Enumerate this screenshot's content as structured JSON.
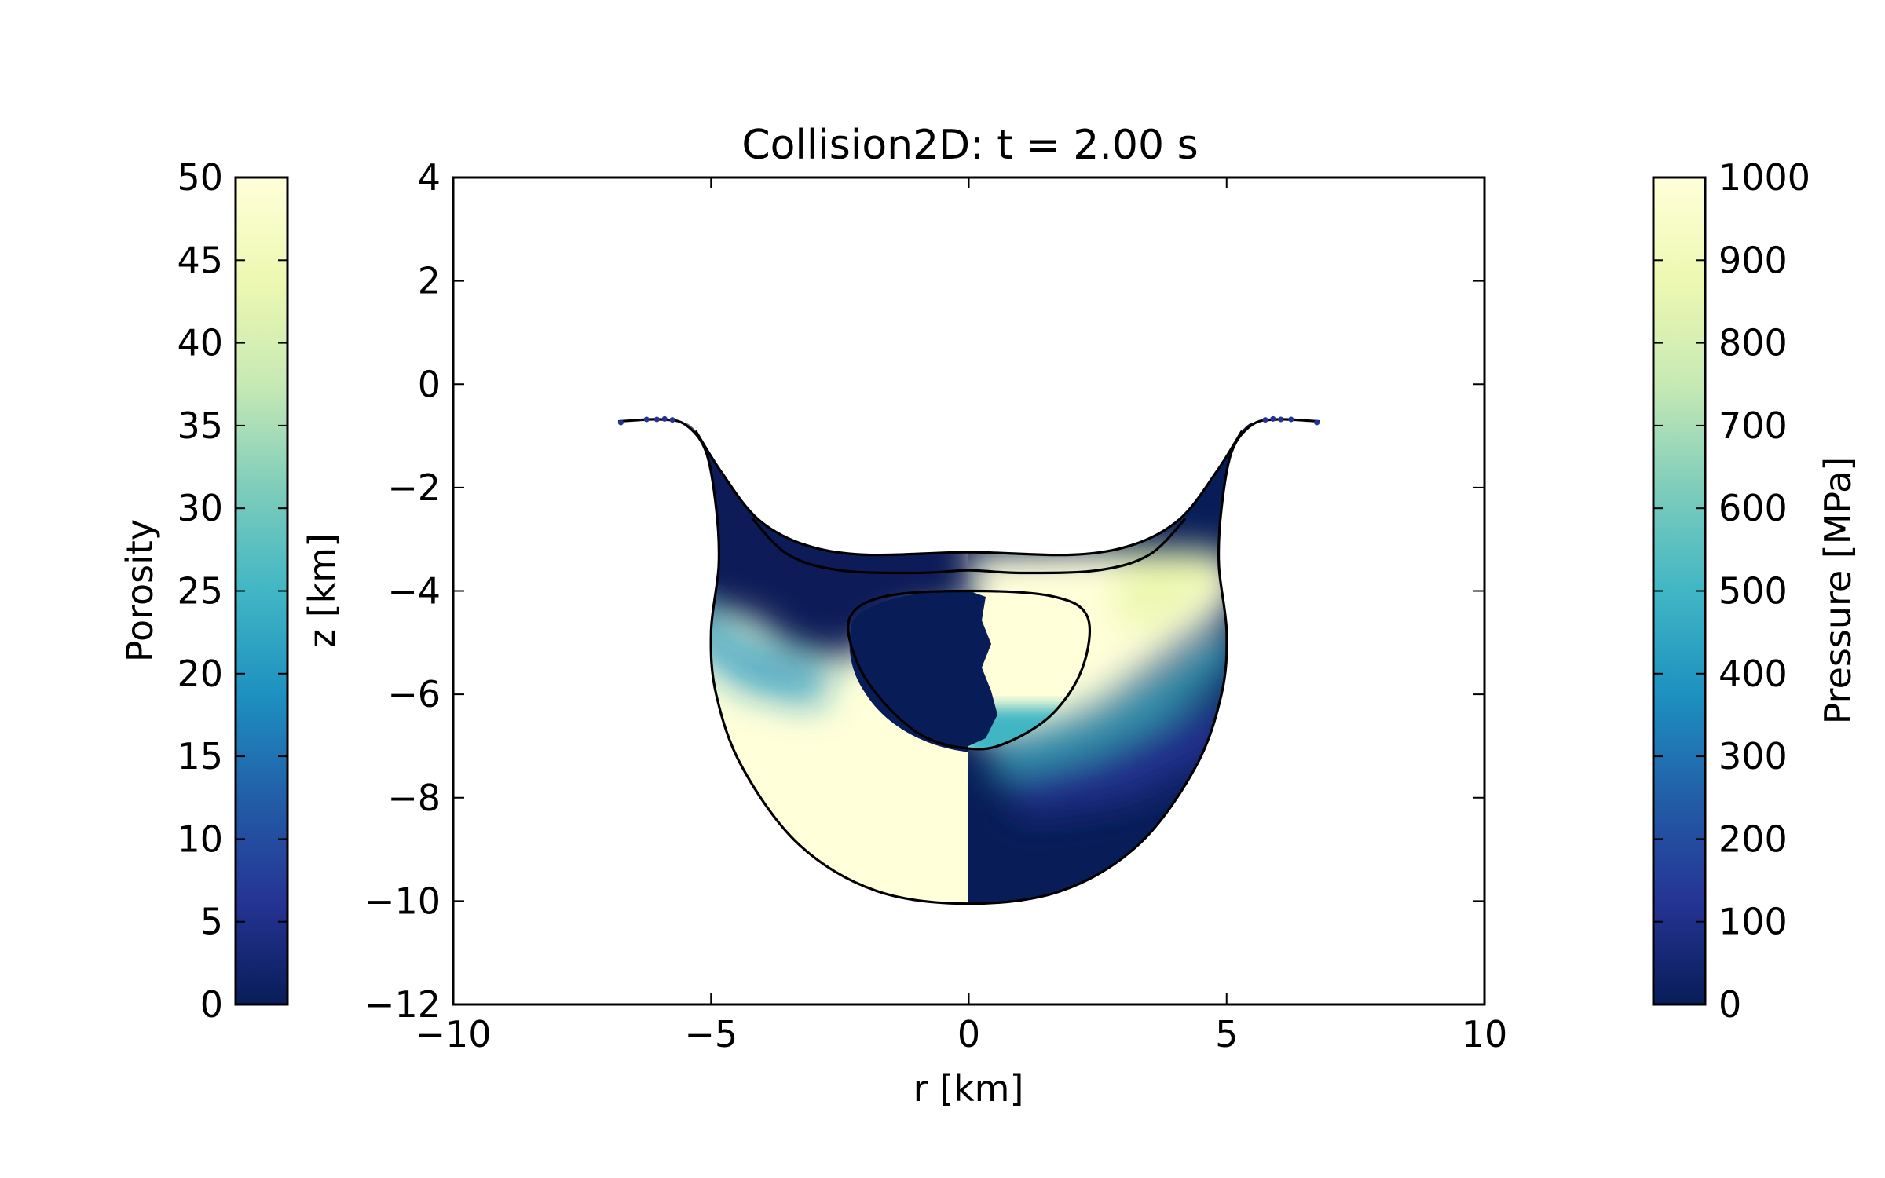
{
  "chart_data": {
    "type": "heatmap",
    "title": "Collision2D: t =  2.00 s",
    "xlabel": "r [km]",
    "ylabel": "z [km]",
    "xlim": [
      -10,
      10
    ],
    "ylim": [
      -12,
      4
    ],
    "x_ticks": [
      -10,
      -5,
      0,
      5,
      10
    ],
    "x_tick_labels": [
      "−10",
      "−5",
      "0",
      "5",
      "10"
    ],
    "y_ticks": [
      4,
      2,
      0,
      -2,
      -4,
      -6,
      -8,
      -10,
      -12
    ],
    "y_tick_labels": [
      "4",
      "2",
      "0",
      "−2",
      "−4",
      "−6",
      "−8",
      "−10",
      "−12"
    ],
    "grid": false,
    "colormap": [
      "#ffffd9",
      "#edf8b1",
      "#c7e9b4",
      "#7fcdbb",
      "#41b6c4",
      "#1d91c0",
      "#225ea8",
      "#253494",
      "#081d58"
    ],
    "colorbars": [
      {
        "side": "left",
        "label": "Porosity",
        "range": [
          0,
          50
        ],
        "ticks": [
          0,
          5,
          10,
          15,
          20,
          25,
          30,
          35,
          40,
          45,
          50
        ],
        "tick_labels": [
          "0",
          "5",
          "10",
          "15",
          "20",
          "25",
          "30",
          "35",
          "40",
          "45",
          "50"
        ]
      },
      {
        "side": "right",
        "label": "Pressure [MPa]",
        "range": [
          0,
          1000
        ],
        "ticks": [
          0,
          100,
          200,
          300,
          400,
          500,
          600,
          700,
          800,
          900,
          1000
        ],
        "tick_labels": [
          "0",
          "100",
          "200",
          "300",
          "400",
          "500",
          "600",
          "700",
          "800",
          "900",
          "1000"
        ]
      }
    ],
    "fields": {
      "left_half_r_range": [
        -10,
        0
      ],
      "left_half_quantity": "Porosity",
      "right_half_r_range": [
        0,
        10
      ],
      "right_half_quantity": "Pressure [MPa]"
    },
    "outline": [
      [
        -6.8,
        -0.72
      ],
      [
        -6.0,
        -0.68
      ],
      [
        -5.5,
        -0.78
      ],
      [
        -5.1,
        -1.3
      ],
      [
        -4.9,
        -2.4
      ],
      [
        -4.85,
        -3.5
      ],
      [
        -5.0,
        -4.8
      ],
      [
        -4.9,
        -6.0
      ],
      [
        -4.4,
        -7.4
      ],
      [
        -3.3,
        -8.9
      ],
      [
        -1.8,
        -9.8
      ],
      [
        0,
        -10.05
      ],
      [
        1.8,
        -9.8
      ],
      [
        3.3,
        -8.9
      ],
      [
        4.4,
        -7.4
      ],
      [
        4.9,
        -6.0
      ],
      [
        5.0,
        -4.8
      ],
      [
        4.85,
        -3.5
      ],
      [
        4.9,
        -2.4
      ],
      [
        5.1,
        -1.3
      ],
      [
        5.5,
        -0.78
      ],
      [
        6.0,
        -0.68
      ],
      [
        6.8,
        -0.72
      ]
    ],
    "crater_floor": [
      [
        -5.3,
        -0.9
      ],
      [
        -4.8,
        -1.7
      ],
      [
        -4.1,
        -2.6
      ],
      [
        -3.2,
        -3.1
      ],
      [
        -2.0,
        -3.3
      ],
      [
        0,
        -3.25
      ],
      [
        2.0,
        -3.3
      ],
      [
        3.2,
        -3.1
      ],
      [
        4.1,
        -2.6
      ],
      [
        4.8,
        -1.7
      ],
      [
        5.3,
        -0.9
      ]
    ],
    "contours": [
      {
        "name": "transient-layer",
        "points": [
          [
            -4.2,
            -2.6
          ],
          [
            -3.5,
            -3.3
          ],
          [
            -2.5,
            -3.6
          ],
          [
            -1.0,
            -3.65
          ],
          [
            0,
            -3.6
          ],
          [
            1.0,
            -3.65
          ],
          [
            2.5,
            -3.6
          ],
          [
            3.5,
            -3.3
          ],
          [
            4.2,
            -2.6
          ]
        ]
      },
      {
        "name": "inner-body",
        "points": [
          [
            -2.3,
            -4.5
          ],
          [
            -1.6,
            -4.1
          ],
          [
            0,
            -4.0
          ],
          [
            1.6,
            -4.1
          ],
          [
            2.3,
            -4.5
          ],
          [
            2.2,
            -5.5
          ],
          [
            1.6,
            -6.4
          ],
          [
            0.7,
            -6.95
          ],
          [
            0,
            -7.05
          ],
          [
            -0.9,
            -6.8
          ],
          [
            -1.7,
            -6.1
          ],
          [
            -2.2,
            -5.3
          ]
        ]
      }
    ]
  }
}
